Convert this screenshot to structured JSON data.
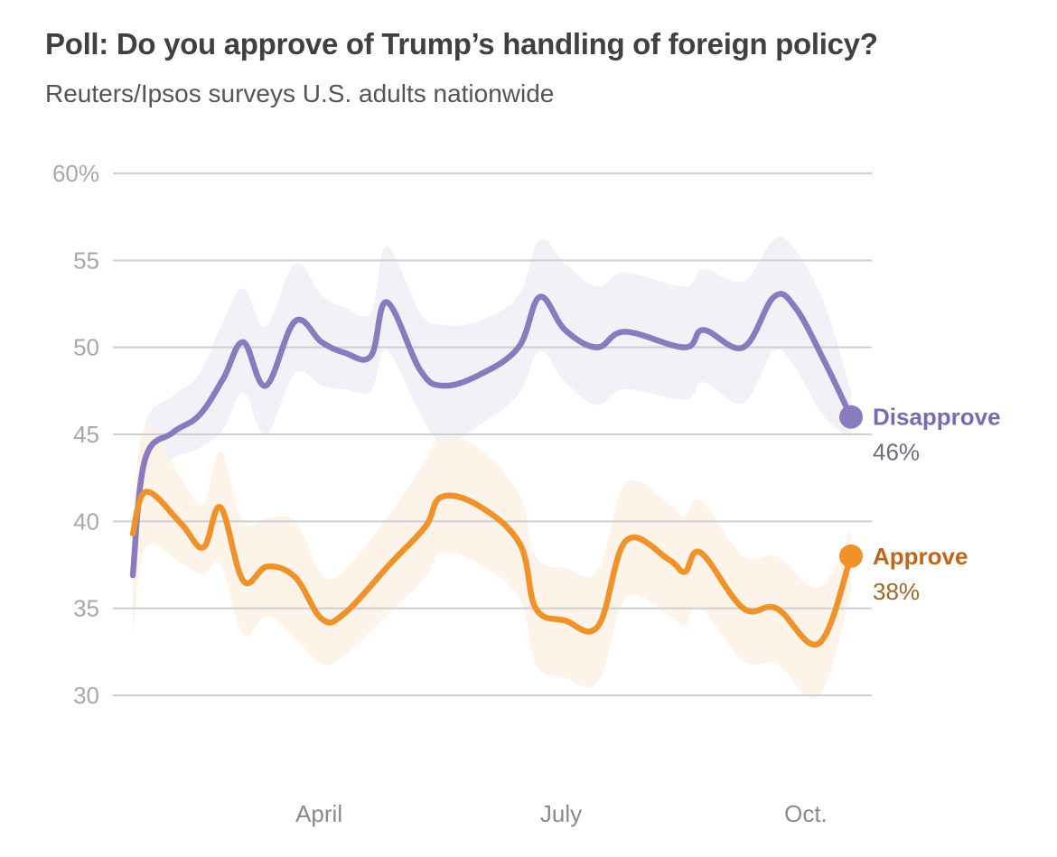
{
  "header": {
    "title": "Poll: Do you approve of Trump’s handling of foreign policy?",
    "subtitle": "Reuters/Ipsos surveys U.S. adults nationwide"
  },
  "chart_data": {
    "type": "line",
    "title": "Poll: Do you approve of Trump’s handling of foreign policy?",
    "subtitle": "Reuters/Ipsos surveys U.S. adults nationwide",
    "xlabel": "",
    "ylabel": "",
    "x_unit": "day of year (2025)",
    "xlim": [
      21,
      291
    ],
    "ylim": [
      30,
      60
    ],
    "yticks": [
      {
        "value": 60,
        "label": "60%"
      },
      {
        "value": 55,
        "label": "55"
      },
      {
        "value": 50,
        "label": "50"
      },
      {
        "value": 45,
        "label": "45"
      },
      {
        "value": 40,
        "label": "40"
      },
      {
        "value": 35,
        "label": "35"
      },
      {
        "value": 30,
        "label": "30"
      }
    ],
    "xticks": [
      {
        "value": 91,
        "label": "April"
      },
      {
        "value": 182,
        "label": "July"
      },
      {
        "value": 274,
        "label": "Oct."
      }
    ],
    "grid": true,
    "legend": "direct labels at line ends (right)",
    "series": [
      {
        "name": "Disapprove",
        "color": "#8a7bbf",
        "label_color": "#7a6bb0",
        "band_color": "#efeef7",
        "end_label": "Disapprove",
        "end_value_label": "46%",
        "x": [
          21,
          25.5,
          36,
          46,
          55,
          62.5,
          71,
          82,
          92,
          100.5,
          110.5,
          116.5,
          129,
          137.5,
          151,
          166,
          174,
          183.5,
          195.5,
          206,
          228.5,
          235.5,
          250.5,
          262,
          270,
          281,
          291
        ],
        "values": [
          36.9,
          43.5,
          45.1,
          46.1,
          48.2,
          50.3,
          47.8,
          51.5,
          50.3,
          49.7,
          49.5,
          52.6,
          48.7,
          47.8,
          48.4,
          50.0,
          52.9,
          51.0,
          50.0,
          50.9,
          50.0,
          51.0,
          50.0,
          52.9,
          52.3,
          49.2,
          46.0
        ],
        "upper": [
          38.5,
          45.5,
          47.2,
          48.5,
          51.5,
          53.4,
          51.2,
          54.8,
          53.0,
          52.3,
          52.0,
          55.8,
          52.0,
          51.3,
          51.5,
          53.0,
          56.2,
          54.8,
          53.5,
          54.3,
          53.5,
          54.5,
          53.8,
          56.2,
          55.6,
          52.5,
          47.5
        ],
        "lower": [
          34.0,
          42.0,
          43.6,
          44.2,
          45.3,
          47.4,
          45.0,
          48.5,
          47.8,
          47.6,
          47.5,
          49.8,
          46.2,
          44.5,
          45.5,
          47.3,
          49.8,
          48.0,
          46.7,
          47.6,
          47.0,
          48.0,
          46.8,
          49.8,
          48.8,
          46.0,
          44.8
        ]
      },
      {
        "name": "Approve",
        "color": "#f0922a",
        "label_color": "#c0651a",
        "band_color": "#fdf1e4",
        "end_label": "Approve",
        "end_value_label": "38%",
        "x": [
          21,
          26,
          39,
          47.5,
          54,
          62.5,
          71.5,
          82,
          92,
          100.5,
          118,
          131,
          137,
          151,
          166.5,
          172.5,
          183.5,
          196,
          206.5,
          222.5,
          228.5,
          234.5,
          250.5,
          263,
          279,
          291
        ],
        "values": [
          39.3,
          41.7,
          39.9,
          38.5,
          40.8,
          36.6,
          37.4,
          36.8,
          34.4,
          34.7,
          37.6,
          39.7,
          41.4,
          40.9,
          38.7,
          35.0,
          34.3,
          34.0,
          38.9,
          37.8,
          37.1,
          38.2,
          35.0,
          35.0,
          33.0,
          38.0
        ],
        "upper": [
          40.5,
          45.5,
          42.5,
          41.0,
          44.0,
          40.0,
          40.2,
          40.0,
          37.0,
          37.2,
          40.5,
          43.5,
          44.8,
          44.2,
          41.5,
          38.0,
          37.3,
          37.2,
          42.2,
          41.0,
          40.3,
          41.2,
          38.0,
          38.0,
          36.2,
          39.5
        ],
        "lower": [
          33.5,
          38.5,
          37.6,
          37.0,
          37.5,
          33.5,
          34.6,
          33.3,
          31.8,
          32.3,
          34.8,
          36.8,
          38.2,
          37.6,
          35.5,
          31.8,
          31.0,
          30.8,
          35.6,
          34.6,
          34.0,
          35.0,
          32.0,
          31.8,
          30.0,
          36.0
        ]
      }
    ]
  }
}
